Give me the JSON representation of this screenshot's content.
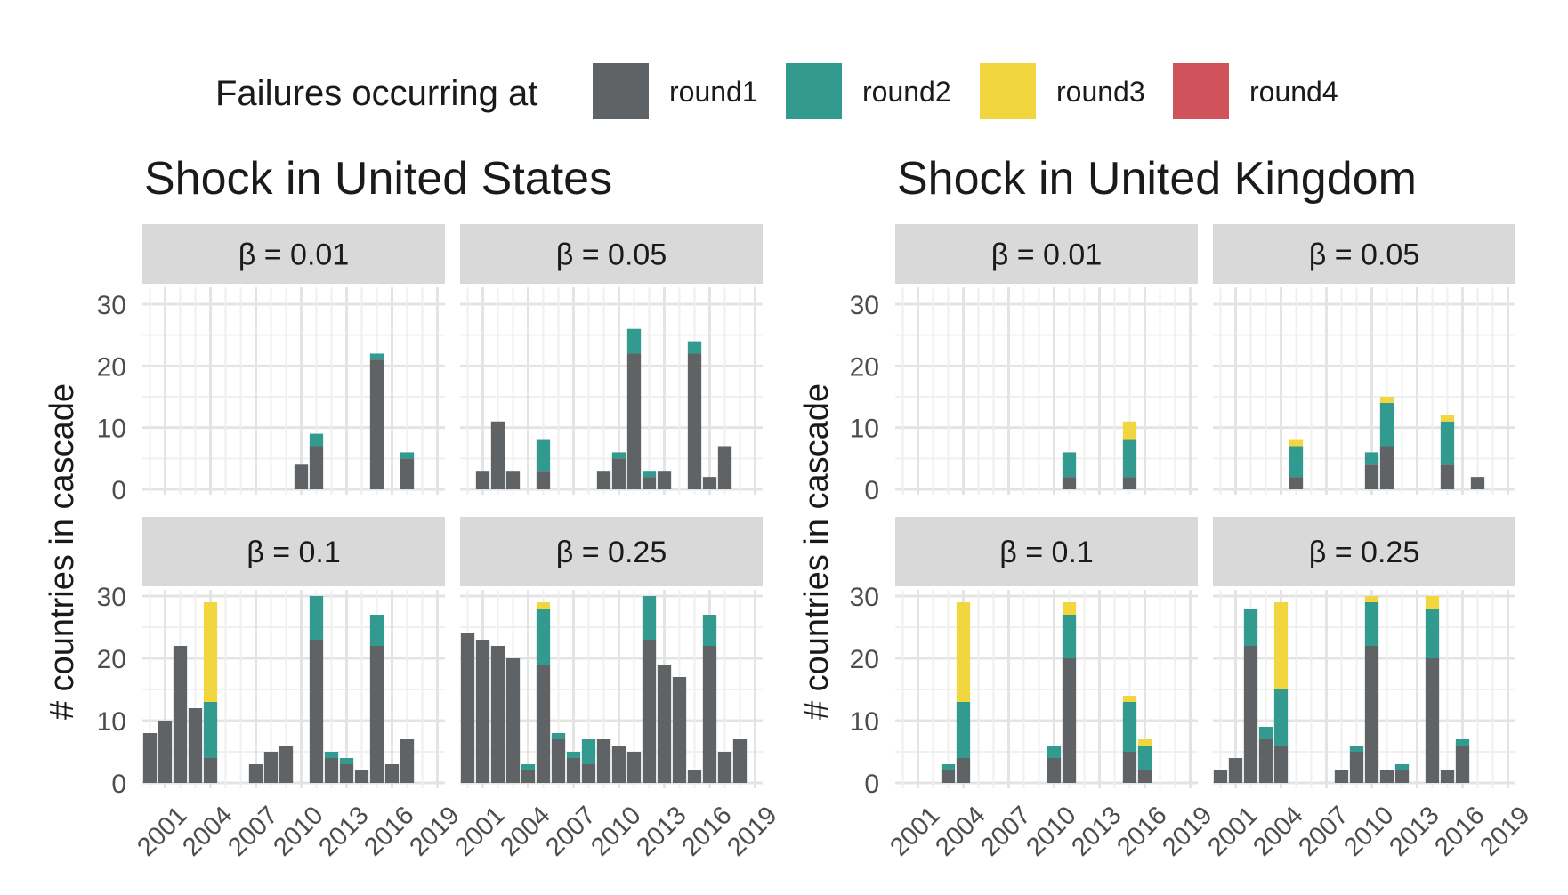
{
  "legend": {
    "title": "Failures occurring at",
    "items": [
      {
        "name": "round1",
        "color": "#5f6366"
      },
      {
        "name": "round2",
        "color": "#339a90"
      },
      {
        "name": "round3",
        "color": "#f1d640"
      },
      {
        "name": "round4",
        "color": "#d0525a"
      }
    ]
  },
  "chart_data": {
    "type": "bar",
    "stacked": true,
    "ylabel": "# countries in cascade",
    "ylim": [
      0,
      30
    ],
    "yticks": [
      0,
      10,
      20,
      30
    ],
    "xticks": [
      "2001",
      "2004",
      "2007",
      "2010",
      "2013",
      "2016",
      "2019"
    ],
    "x_years": [
      2000,
      2001,
      2002,
      2003,
      2004,
      2005,
      2006,
      2007,
      2008,
      2009,
      2010,
      2011,
      2012,
      2013,
      2014,
      2015,
      2016,
      2017,
      2018
    ],
    "groups": [
      {
        "title": "Shock in United States",
        "panels": [
          {
            "label": "β = 0.01",
            "series": [
              {
                "name": "round1",
                "values": [
                  0,
                  0,
                  0,
                  0,
                  0,
                  0,
                  0,
                  0,
                  0,
                  0,
                  4,
                  7,
                  0,
                  0,
                  0,
                  21,
                  0,
                  5,
                  0
                ]
              },
              {
                "name": "round2",
                "values": [
                  0,
                  0,
                  0,
                  0,
                  0,
                  0,
                  0,
                  0,
                  0,
                  0,
                  0,
                  2,
                  0,
                  0,
                  0,
                  1,
                  0,
                  1,
                  0
                ]
              },
              {
                "name": "round3",
                "values": [
                  0,
                  0,
                  0,
                  0,
                  0,
                  0,
                  0,
                  0,
                  0,
                  0,
                  0,
                  0,
                  0,
                  0,
                  0,
                  0,
                  0,
                  0,
                  0
                ]
              },
              {
                "name": "round4",
                "values": [
                  0,
                  0,
                  0,
                  0,
                  0,
                  0,
                  0,
                  0,
                  0,
                  0,
                  0,
                  0,
                  0,
                  0,
                  0,
                  0,
                  0,
                  0,
                  0
                ]
              }
            ]
          },
          {
            "label": "β = 0.05",
            "series": [
              {
                "name": "round1",
                "values": [
                  0,
                  3,
                  11,
                  3,
                  0,
                  3,
                  0,
                  0,
                  0,
                  3,
                  5,
                  22,
                  2,
                  3,
                  0,
                  22,
                  2,
                  7,
                  0
                ]
              },
              {
                "name": "round2",
                "values": [
                  0,
                  0,
                  0,
                  0,
                  0,
                  5,
                  0,
                  0,
                  0,
                  0,
                  1,
                  4,
                  1,
                  0,
                  0,
                  2,
                  0,
                  0,
                  0
                ]
              },
              {
                "name": "round3",
                "values": [
                  0,
                  0,
                  0,
                  0,
                  0,
                  0,
                  0,
                  0,
                  0,
                  0,
                  0,
                  0,
                  0,
                  0,
                  0,
                  0,
                  0,
                  0,
                  0
                ]
              },
              {
                "name": "round4",
                "values": [
                  0,
                  0,
                  0,
                  0,
                  0,
                  0,
                  0,
                  0,
                  0,
                  0,
                  0,
                  0,
                  0,
                  0,
                  0,
                  0,
                  0,
                  0,
                  0
                ]
              }
            ]
          },
          {
            "label": "β = 0.1",
            "series": [
              {
                "name": "round1",
                "values": [
                  8,
                  10,
                  22,
                  12,
                  4,
                  0,
                  0,
                  3,
                  5,
                  6,
                  0,
                  23,
                  4,
                  3,
                  2,
                  22,
                  3,
                  7,
                  0
                ]
              },
              {
                "name": "round2",
                "values": [
                  0,
                  0,
                  0,
                  0,
                  9,
                  0,
                  0,
                  0,
                  0,
                  0,
                  0,
                  7,
                  1,
                  1,
                  0,
                  5,
                  0,
                  0,
                  0
                ]
              },
              {
                "name": "round3",
                "values": [
                  0,
                  0,
                  0,
                  0,
                  16,
                  0,
                  0,
                  0,
                  0,
                  0,
                  0,
                  0,
                  0,
                  0,
                  0,
                  0,
                  0,
                  0,
                  0
                ]
              },
              {
                "name": "round4",
                "values": [
                  0,
                  0,
                  0,
                  0,
                  0,
                  0,
                  0,
                  0,
                  0,
                  0,
                  0,
                  0,
                  0,
                  0,
                  0,
                  0,
                  0,
                  0,
                  0
                ]
              }
            ]
          },
          {
            "label": "β = 0.25",
            "series": [
              {
                "name": "round1",
                "values": [
                  24,
                  23,
                  22,
                  20,
                  2,
                  19,
                  7,
                  4,
                  3,
                  7,
                  6,
                  5,
                  23,
                  19,
                  17,
                  2,
                  22,
                  5,
                  7
                ]
              },
              {
                "name": "round2",
                "values": [
                  0,
                  0,
                  0,
                  0,
                  1,
                  9,
                  1,
                  1,
                  4,
                  0,
                  0,
                  0,
                  7,
                  0,
                  0,
                  0,
                  5,
                  0,
                  0
                ]
              },
              {
                "name": "round3",
                "values": [
                  0,
                  0,
                  0,
                  0,
                  0,
                  1,
                  0,
                  0,
                  0,
                  0,
                  0,
                  0,
                  0,
                  0,
                  0,
                  0,
                  0,
                  0,
                  0
                ]
              },
              {
                "name": "round4",
                "values": [
                  0,
                  0,
                  0,
                  0,
                  0,
                  0,
                  0,
                  0,
                  0,
                  0,
                  0,
                  0,
                  0,
                  0,
                  0,
                  0,
                  0,
                  0,
                  0
                ]
              }
            ]
          }
        ]
      },
      {
        "title": "Shock in United Kingdom",
        "panels": [
          {
            "label": "β = 0.01",
            "series": [
              {
                "name": "round1",
                "values": [
                  0,
                  0,
                  0,
                  0,
                  0,
                  0,
                  0,
                  0,
                  0,
                  0,
                  0,
                  2,
                  0,
                  0,
                  0,
                  2,
                  0,
                  0,
                  0
                ]
              },
              {
                "name": "round2",
                "values": [
                  0,
                  0,
                  0,
                  0,
                  0,
                  0,
                  0,
                  0,
                  0,
                  0,
                  0,
                  4,
                  0,
                  0,
                  0,
                  6,
                  0,
                  0,
                  0
                ]
              },
              {
                "name": "round3",
                "values": [
                  0,
                  0,
                  0,
                  0,
                  0,
                  0,
                  0,
                  0,
                  0,
                  0,
                  0,
                  0,
                  0,
                  0,
                  0,
                  3,
                  0,
                  0,
                  0
                ]
              },
              {
                "name": "round4",
                "values": [
                  0,
                  0,
                  0,
                  0,
                  0,
                  0,
                  0,
                  0,
                  0,
                  0,
                  0,
                  0,
                  0,
                  0,
                  0,
                  0,
                  0,
                  0,
                  0
                ]
              }
            ]
          },
          {
            "label": "β = 0.05",
            "series": [
              {
                "name": "round1",
                "values": [
                  0,
                  0,
                  0,
                  0,
                  0,
                  2,
                  0,
                  0,
                  0,
                  0,
                  4,
                  7,
                  0,
                  0,
                  0,
                  4,
                  0,
                  2,
                  0
                ]
              },
              {
                "name": "round2",
                "values": [
                  0,
                  0,
                  0,
                  0,
                  0,
                  5,
                  0,
                  0,
                  0,
                  0,
                  2,
                  7,
                  0,
                  0,
                  0,
                  7,
                  0,
                  0,
                  0
                ]
              },
              {
                "name": "round3",
                "values": [
                  0,
                  0,
                  0,
                  0,
                  0,
                  1,
                  0,
                  0,
                  0,
                  0,
                  0,
                  1,
                  0,
                  0,
                  0,
                  1,
                  0,
                  0,
                  0
                ]
              },
              {
                "name": "round4",
                "values": [
                  0,
                  0,
                  0,
                  0,
                  0,
                  0,
                  0,
                  0,
                  0,
                  0,
                  0,
                  0,
                  0,
                  0,
                  0,
                  0,
                  0,
                  0,
                  0
                ]
              }
            ]
          },
          {
            "label": "β = 0.1",
            "series": [
              {
                "name": "round1",
                "values": [
                  0,
                  0,
                  0,
                  2,
                  4,
                  0,
                  0,
                  0,
                  0,
                  0,
                  4,
                  20,
                  0,
                  0,
                  0,
                  5,
                  2,
                  0,
                  0
                ]
              },
              {
                "name": "round2",
                "values": [
                  0,
                  0,
                  0,
                  1,
                  9,
                  0,
                  0,
                  0,
                  0,
                  0,
                  2,
                  7,
                  0,
                  0,
                  0,
                  8,
                  4,
                  0,
                  0
                ]
              },
              {
                "name": "round3",
                "values": [
                  0,
                  0,
                  0,
                  0,
                  16,
                  0,
                  0,
                  0,
                  0,
                  0,
                  0,
                  2,
                  0,
                  0,
                  0,
                  1,
                  1,
                  0,
                  0
                ]
              },
              {
                "name": "round4",
                "values": [
                  0,
                  0,
                  0,
                  0,
                  0,
                  0,
                  0,
                  0,
                  0,
                  0,
                  0,
                  0,
                  0,
                  0,
                  0,
                  0,
                  0,
                  0,
                  0
                ]
              }
            ]
          },
          {
            "label": "β = 0.25",
            "series": [
              {
                "name": "round1",
                "values": [
                  2,
                  4,
                  22,
                  7,
                  6,
                  0,
                  0,
                  0,
                  2,
                  5,
                  22,
                  2,
                  2,
                  0,
                  20,
                  2,
                  6,
                  0,
                  0
                ]
              },
              {
                "name": "round2",
                "values": [
                  0,
                  0,
                  6,
                  2,
                  9,
                  0,
                  0,
                  0,
                  0,
                  1,
                  7,
                  0,
                  1,
                  0,
                  8,
                  0,
                  1,
                  0,
                  0
                ]
              },
              {
                "name": "round3",
                "values": [
                  0,
                  0,
                  0,
                  0,
                  14,
                  0,
                  0,
                  0,
                  0,
                  0,
                  1,
                  0,
                  0,
                  0,
                  2,
                  0,
                  0,
                  0,
                  0
                ]
              },
              {
                "name": "round4",
                "values": [
                  0,
                  0,
                  0,
                  0,
                  0,
                  0,
                  0,
                  0,
                  0,
                  0,
                  0,
                  0,
                  0,
                  0,
                  0,
                  0,
                  0,
                  0,
                  0
                ]
              }
            ]
          }
        ]
      }
    ]
  }
}
